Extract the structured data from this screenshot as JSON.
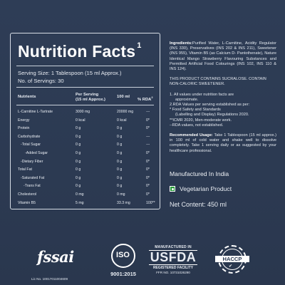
{
  "panel": {
    "title": "Nutrition Facts",
    "title_sup": "1",
    "serving_size": "Serving Size: 1 Tablespoon (15 ml Approx.)",
    "servings": "No. of Servings: 30",
    "headers": {
      "nutrients": "Nutrients",
      "per_serving_line1": "Per Serving",
      "per_serving_line2": "(15 ml Approx.)",
      "per100": "100 ml",
      "rda": "% RDA",
      "rda_sup": "2"
    },
    "rows": [
      {
        "name": "L-Carnitine L-Tartrate",
        "serving": "3000 mg",
        "per100": "20000 mg",
        "rda": "---"
      },
      {
        "name": "Energy",
        "serving": "0 kcal",
        "per100": "0 kcal",
        "rda": "0*"
      },
      {
        "name": "Protein",
        "serving": "0 g",
        "per100": "0 g",
        "rda": "0*"
      },
      {
        "name": "Carbohydrate",
        "serving": "0 g",
        "per100": "0 g",
        "rda": "---"
      },
      {
        "name": "-Total Sugar",
        "serving": "0 g",
        "per100": "0 g",
        "rda": "---"
      },
      {
        "name": "-Added Sugar",
        "serving": "0 g",
        "per100": "0 g",
        "rda": "0*"
      },
      {
        "name": "-Dietary Fiber",
        "serving": "0 g",
        "per100": "0 g",
        "rda": "0*"
      },
      {
        "name": "Total Fat",
        "serving": "0 g",
        "per100": "0 g",
        "rda": "0*"
      },
      {
        "name": "-Saturated Fat",
        "serving": "0 g",
        "per100": "0 g",
        "rda": "0*"
      },
      {
        "name": "-Trans Fat",
        "serving": "0 g",
        "per100": "0 g",
        "rda": "0*"
      },
      {
        "name": "Cholesterol",
        "serving": "0 mg",
        "per100": "0 mg",
        "rda": "0*"
      },
      {
        "name": "Vitamin B5",
        "serving": "5 mg",
        "per100": "33.3 mg",
        "rda": "100**"
      }
    ]
  },
  "info": {
    "ingredients_label": "Ingredients:",
    "ingredients": "Purified Water, L-Carnitine, Acidity Regulator (INS 330), Preservatives (INS 202 & INS 211), Sweetener (INS 955), Vitamin B5 (as Calcium D- Pantothenate), Nature Identical Mango Strawberry Flavouring Substances and Permitted Artificial Food Colourings (INS 102, INS 110 & INS 124).",
    "contains": "THIS PRODUCT CONTAINS SUCRALOSE. CONTAIN NON-CALORIC SWEETENER.",
    "notes": [
      "1. All values under nutrition facts  are",
      "approximate.",
      "2.RDA Values per serving established as per:",
      "*  Food Safety and Standards",
      "(Labelling and Display) Regulations 2020.",
      "**ICMR 2020, Men-moderate work.",
      "--RDA values, not established."
    ],
    "usage_label": "Recommended Usage:",
    "usage": "Take 1 Tablespoon (15 ml approx.) in 100 ml of cold water and shake well to dissolve completely. Take 1 serving daily or as suggested by your healthcare professional.",
    "manufactured": "Manufactured In India",
    "vegetarian": "Vegetarian Product",
    "net_content": "Net Content: 450 ml"
  },
  "logos": {
    "fssai_word": "fssai",
    "fssai_lic": "Lic No. 10017011004609",
    "iso_text": "ISO",
    "iso_num": "9001:2015",
    "usfda_top": "MANUFACTURED IN",
    "usfda_main": "USFDA",
    "usfda_reg": "REGISTERED FACILITY",
    "usfda_ffr": "FFR NO. 10731026290",
    "haccp_text": "HACCP"
  },
  "colors": {
    "background": "#2c3a52",
    "border": "#d7dde6",
    "veg_green": "#2a9d3c"
  }
}
